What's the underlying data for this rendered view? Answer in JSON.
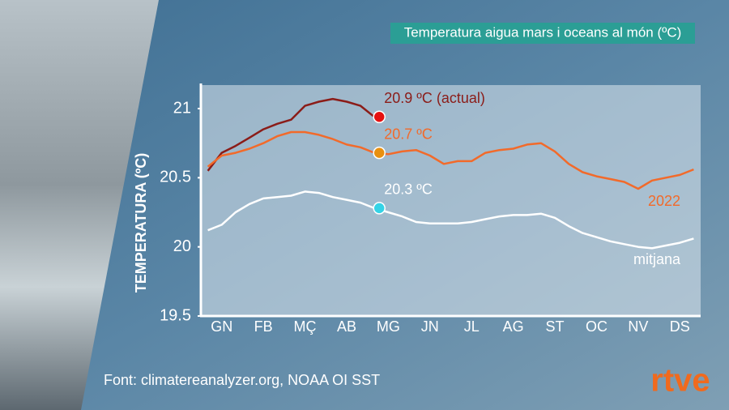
{
  "chart_data": {
    "type": "line",
    "title": "Temperatura aigua mars i oceans al món (ºC)",
    "y_label": "TEMPERATURA (ºC)",
    "source": "Font: climatereanalyzer.org, NOAA OI SST",
    "logo": "rtve",
    "categories": [
      null,
      "GN",
      null,
      null,
      "FB",
      null,
      null,
      "MÇ",
      null,
      null,
      "AB",
      null,
      null,
      "MG",
      null,
      null,
      "JN",
      null,
      null,
      "JL",
      null,
      null,
      "AG",
      null,
      null,
      "ST",
      null,
      null,
      "OC",
      null,
      null,
      "NV",
      null,
      null,
      "DS",
      null
    ],
    "ylim": [
      19.5,
      21.17
    ],
    "yticks": [
      19.5,
      20,
      20.5,
      21
    ],
    "series": [
      {
        "color": "#8b1c18",
        "marker_color": "#e51010",
        "values": [
          20.55,
          20.68,
          20.73,
          20.79,
          20.85,
          20.89,
          20.92,
          21.02,
          21.05,
          21.07,
          21.05,
          21.02,
          20.94,
          null,
          null,
          null,
          null,
          null,
          null,
          null,
          null,
          null,
          null,
          null,
          null,
          null,
          null,
          null,
          null,
          null,
          null,
          null,
          null,
          null,
          null,
          null
        ],
        "value_labels": [
          null,
          null,
          null,
          null,
          null,
          null,
          null,
          null,
          null,
          null,
          null,
          null,
          "20.9 ºC (actual)",
          null,
          null,
          null,
          null,
          null,
          null,
          null,
          null,
          null,
          null,
          null,
          null,
          null,
          null,
          null,
          null,
          null,
          null,
          null,
          null,
          null,
          null,
          null
        ]
      },
      {
        "name": "2022",
        "color": "#f26a2a",
        "marker_color": "#e8900f",
        "values": [
          20.58,
          20.66,
          20.68,
          20.71,
          20.75,
          20.8,
          20.83,
          20.83,
          20.81,
          20.78,
          20.74,
          20.72,
          20.68,
          20.67,
          20.69,
          20.7,
          20.66,
          20.6,
          20.62,
          20.62,
          20.68,
          20.7,
          20.71,
          20.74,
          20.75,
          20.69,
          20.6,
          20.54,
          20.51,
          20.49,
          20.47,
          20.42,
          20.48,
          20.5,
          20.52,
          20.56
        ],
        "value_labels": [
          null,
          null,
          null,
          null,
          null,
          null,
          null,
          null,
          null,
          null,
          null,
          null,
          "20.7 ºC",
          null,
          null,
          null,
          null,
          null,
          null,
          null,
          null,
          null,
          null,
          null,
          null,
          null,
          null,
          null,
          null,
          null,
          null,
          null,
          null,
          null,
          null,
          null
        ]
      },
      {
        "name": "mitjana",
        "color": "#ffffff",
        "marker_color": "#35d3e6",
        "values": [
          20.12,
          20.16,
          20.25,
          20.31,
          20.35,
          20.36,
          20.37,
          20.4,
          20.39,
          20.36,
          20.34,
          20.32,
          20.28,
          20.25,
          20.22,
          20.18,
          20.17,
          20.17,
          20.17,
          20.18,
          20.2,
          20.22,
          20.23,
          20.23,
          20.24,
          20.21,
          20.15,
          20.1,
          20.07,
          20.04,
          20.02,
          20.0,
          19.99,
          20.01,
          20.03,
          20.06
        ],
        "value_labels": [
          null,
          null,
          null,
          null,
          null,
          null,
          null,
          null,
          null,
          null,
          null,
          null,
          "20.3 ºC",
          null,
          null,
          null,
          null,
          null,
          null,
          null,
          null,
          null,
          null,
          null,
          null,
          null,
          null,
          null,
          null,
          null,
          null,
          null,
          null,
          null,
          null,
          null
        ]
      }
    ]
  }
}
